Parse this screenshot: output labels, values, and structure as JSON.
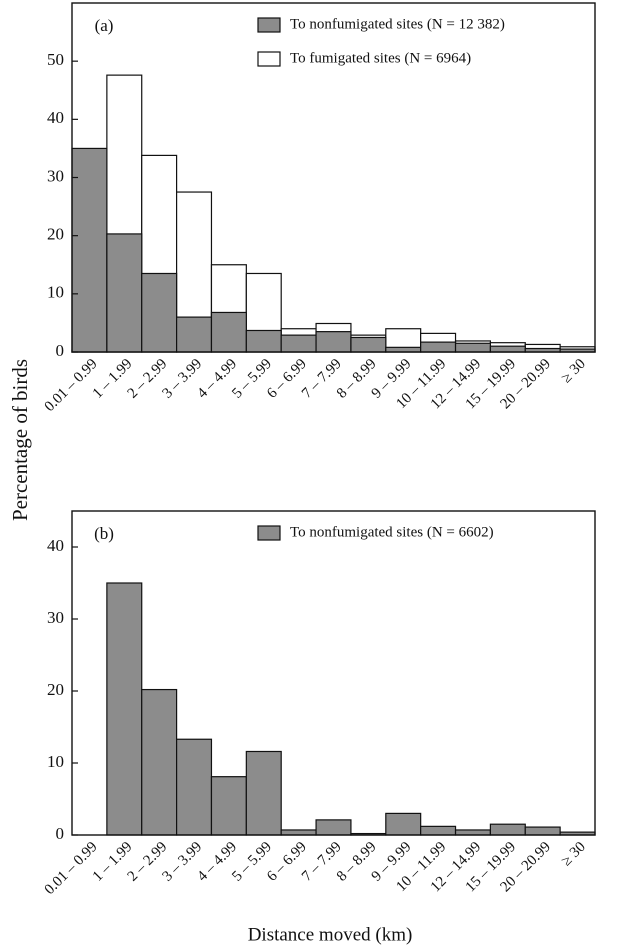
{
  "chart_data": [
    {
      "type": "bar",
      "panel_label": "(a)",
      "categories": [
        "0.01 – 0.99",
        "1 – 1.99",
        "2 – 2.99",
        "3 – 3.99",
        "4 – 4.99",
        "5 – 5.99",
        "6 – 6.99",
        "7 – 7.99",
        "8 – 8.99",
        "9 – 9.99",
        "10 – 11.99",
        "12 – 14.99",
        "15 – 19.99",
        "20 – 20.99",
        "≥ 30"
      ],
      "series": [
        {
          "name": "To nonfumigated sites (N = 12 382)",
          "color": "#8c8c8c",
          "values": [
            35,
            20.3,
            13.5,
            6,
            6.8,
            3.7,
            2.9,
            3.5,
            2.5,
            0.8,
            1.7,
            1.5,
            1,
            0.6,
            0.5
          ]
        },
        {
          "name": "To fumigated sites (N = 6964)",
          "color": "#ffffff",
          "values": [
            0.3,
            47.6,
            33.8,
            27.5,
            15,
            13.5,
            4,
            4.9,
            2.9,
            4,
            3.2,
            1.9,
            1.6,
            1.3,
            0.9
          ]
        }
      ],
      "ylim": [
        0,
        60
      ],
      "yticks": [
        0,
        10,
        20,
        30,
        40,
        50
      ]
    },
    {
      "type": "bar",
      "panel_label": "(b)",
      "categories": [
        "0.01 – 0.99",
        "1 – 1.99",
        "2 – 2.99",
        "3 – 3.99",
        "4 – 4.99",
        "5 – 5.99",
        "6 – 6.99",
        "7 – 7.99",
        "8 – 8.99",
        "9 – 9.99",
        "10 – 11.99",
        "12 – 14.99",
        "15 – 19.99",
        "20 – 20.99",
        "≥ 30"
      ],
      "series": [
        {
          "name": "To nonfumigated sites (N = 6602)",
          "color": "#8c8c8c",
          "values": [
            0,
            35,
            20.2,
            13.3,
            8.1,
            11.6,
            0.7,
            2.1,
            0.2,
            3,
            1.2,
            0.7,
            1.5,
            1.1,
            0.4
          ]
        }
      ],
      "ylim": [
        0,
        45
      ],
      "yticks": [
        0,
        10,
        20,
        30,
        40
      ]
    }
  ],
  "y_label": "Percentage of birds",
  "x_label": "Distance moved (km)"
}
